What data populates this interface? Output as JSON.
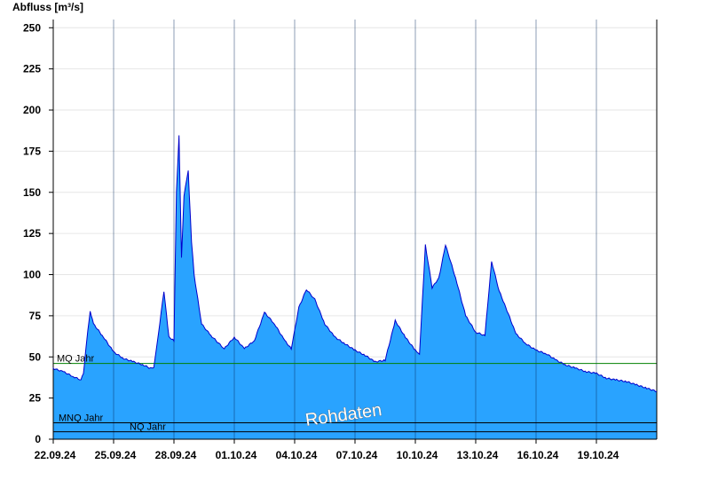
{
  "chart_data": {
    "type": "area",
    "title": "",
    "ylabel": "Abfluss [m³/s]",
    "xlabel": "",
    "ylim": [
      0,
      255
    ],
    "yticks": [
      0,
      25,
      50,
      75,
      100,
      125,
      150,
      175,
      200,
      225,
      250
    ],
    "grid": "horizontal",
    "x_ticks": [
      "22.09.24",
      "25.09.24",
      "28.09.24",
      "01.10.24",
      "04.10.24",
      "07.10.24",
      "10.10.24",
      "13.10.24",
      "16.10.24",
      "19.10.24"
    ],
    "x_range": [
      "22.09.24 00:00",
      "22.10.24 00:00"
    ],
    "series": [
      {
        "color": "#29a3ff",
        "line_color": "#0000cc",
        "x": [
          "22.09.24 00:00",
          "22.09.24 12:00",
          "23.09.24 00:00",
          "23.09.24 09:00",
          "23.09.24 12:00",
          "23.09.24 16:00",
          "23.09.24 20:00",
          "24.09.24 00:00",
          "24.09.24 12:00",
          "25.09.24 00:00",
          "25.09.24 12:00",
          "26.09.24 00:00",
          "26.09.24 12:00",
          "26.09.24 20:00",
          "27.09.24 00:00",
          "27.09.24 04:00",
          "27.09.24 12:00",
          "27.09.24 18:00",
          "28.09.24 00:00",
          "28.09.24 03:00",
          "28.09.24 06:00",
          "28.09.24 09:00",
          "28.09.24 12:00",
          "28.09.24 17:00",
          "28.09.24 21:00",
          "29.09.24 00:00",
          "29.09.24 09:00",
          "29.09.24 20:00",
          "30.09.24 12:00",
          "01.10.24 00:00",
          "01.10.24 12:00",
          "02.10.24 00:00",
          "02.10.24 12:00",
          "03.10.24 00:00",
          "03.10.24 12:00",
          "03.10.24 20:00",
          "04.10.24 05:00",
          "04.10.24 14:00",
          "05.10.24 00:00",
          "05.10.24 12:00",
          "06.10.24 00:00",
          "06.10.24 12:00",
          "07.10.24 00:00",
          "07.10.24 12:00",
          "08.10.24 00:00",
          "08.10.24 12:00",
          "09.10.24 00:00",
          "09.10.24 12:00",
          "10.10.24 00:00",
          "10.10.24 05:00",
          "10.10.24 12:00",
          "10.10.24 20:00",
          "11.10.24 04:00",
          "11.10.24 12:00",
          "12.10.24 00:00",
          "12.10.24 12:00",
          "13.10.24 00:00",
          "13.10.24 11:00",
          "13.10.24 19:00",
          "14.10.24 04:00",
          "14.10.24 12:00",
          "15.10.24 00:00",
          "15.10.24 12:00",
          "16.10.24 00:00",
          "16.10.24 12:00",
          "17.10.24 00:00",
          "17.10.24 12:00",
          "18.10.24 00:00",
          "18.10.24 12:00",
          "19.10.24 00:00",
          "19.10.24 12:00",
          "20.10.24 00:00",
          "20.10.24 12:00",
          "21.10.24 00:00",
          "21.10.24 12:00",
          "22.10.24 00:00"
        ],
        "values": [
          43,
          41,
          38,
          36,
          40,
          60,
          78,
          70,
          62,
          53,
          49,
          47,
          45,
          43,
          44,
          58,
          90,
          62,
          60,
          150,
          185,
          110,
          148,
          163,
          120,
          100,
          70,
          63,
          55,
          62,
          55,
          60,
          77,
          70,
          60,
          55,
          80,
          91,
          85,
          70,
          62,
          58,
          54,
          51,
          47,
          48,
          72,
          62,
          54,
          52,
          118,
          92,
          98,
          118,
          98,
          75,
          65,
          63,
          108,
          90,
          80,
          64,
          58,
          54,
          52,
          48,
          45,
          43,
          41,
          40,
          37,
          36,
          35,
          33,
          31,
          29
        ]
      }
    ],
    "reference_lines": [
      {
        "name": "MQ Jahr",
        "value": 46,
        "color": "#008000"
      },
      {
        "name": "MNQ Jahr",
        "value": 10,
        "color": "#000000"
      },
      {
        "name": "NQ Jahr",
        "value": 4.5,
        "color": "#000000"
      }
    ],
    "watermark": "Rohdaten"
  }
}
